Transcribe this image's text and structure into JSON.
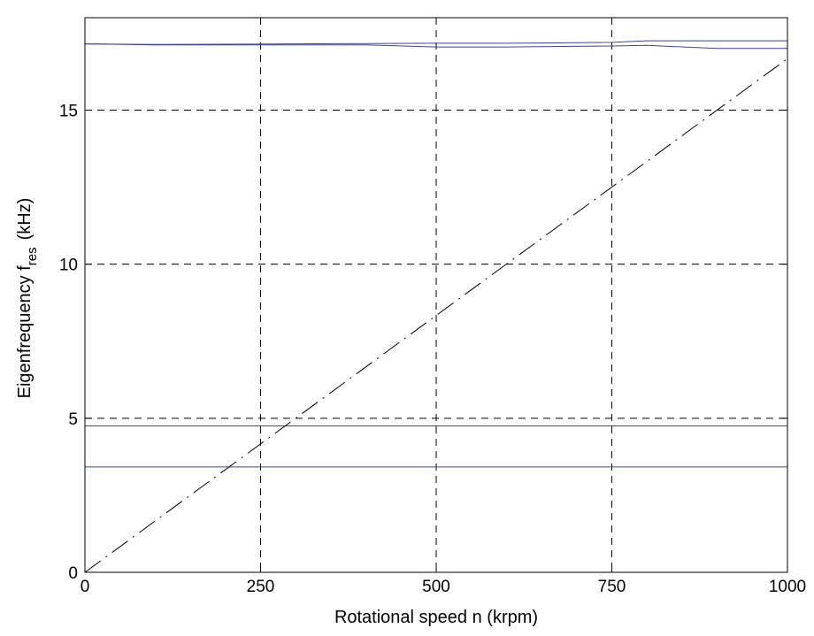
{
  "chart_data": {
    "type": "line",
    "title": "",
    "xlabel": "Rotational speed n (krpm)",
    "ylabel": {
      "main": "Eigenfrequency f",
      "subscript": "res",
      "unit": "(kHz)"
    },
    "xlim": [
      0,
      1000
    ],
    "ylim": [
      0,
      18
    ],
    "xticks": [
      0,
      250,
      500,
      750,
      1000
    ],
    "yticks": [
      0,
      5,
      10,
      15
    ],
    "grid": true,
    "legend": "none",
    "series": [
      {
        "style": "solid",
        "color": "#3f3fa8",
        "x": [
          0,
          100,
          400,
          500,
          600,
          750,
          800,
          900,
          1000
        ],
        "y": [
          17.15,
          17.12,
          17.12,
          17.05,
          17.05,
          17.08,
          17.1,
          17.0,
          17.0
        ]
      },
      {
        "style": "solid",
        "color": "#3f3fa8",
        "x": [
          0,
          100,
          400,
          500,
          600,
          750,
          800,
          900,
          1000
        ],
        "y": [
          17.15,
          17.13,
          17.16,
          17.17,
          17.17,
          17.2,
          17.25,
          17.25,
          17.25
        ]
      },
      {
        "style": "solid",
        "color": "#3f3fa8",
        "x": [
          0,
          1000
        ],
        "y": [
          4.75,
          4.75
        ]
      },
      {
        "style": "solid",
        "color": "#3f3fa8",
        "x": [
          0,
          1000
        ],
        "y": [
          3.42,
          3.42
        ]
      },
      {
        "style": "dashdot",
        "color": "#000000",
        "x": [
          0,
          1000
        ],
        "y": [
          0,
          16.67
        ]
      }
    ]
  }
}
